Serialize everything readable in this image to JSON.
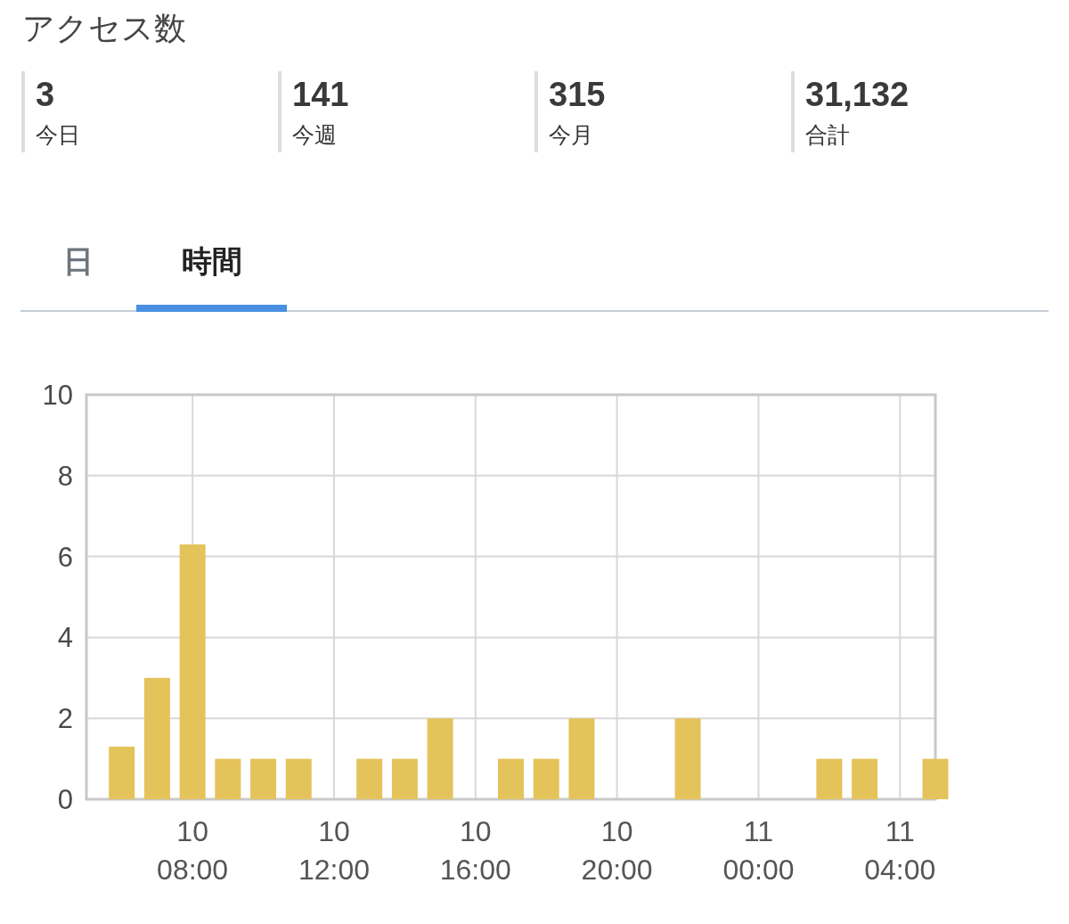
{
  "chart_data": [
    {
      "type": "other",
      "title": "アクセス数",
      "annotations": [
        "3",
        "今日",
        "141",
        "今週",
        "315",
        "今月",
        "31,132",
        "合計"
      ]
    },
    {
      "type": "other",
      "annotations": [
        "日",
        "時間"
      ]
    },
    {
      "type": "bar",
      "categories": [
        null,
        null,
        null,
        "10\n08:00",
        null,
        null,
        null,
        "10\n12:00",
        null,
        null,
        null,
        "10\n16:00",
        null,
        null,
        null,
        "10\n20:00",
        null,
        null,
        null,
        "11\n00:00",
        null,
        null,
        null,
        "11\n04:00",
        null
      ],
      "values": [
        null,
        1.3,
        3,
        6.3,
        1,
        1,
        1,
        null,
        1,
        1,
        2,
        null,
        1,
        1,
        2,
        null,
        null,
        2,
        null,
        null,
        null,
        1,
        1,
        null,
        1
      ],
      "color": "#e4c35a",
      "ylim": [
        0,
        10
      ],
      "yticks": [
        0,
        2,
        4,
        6,
        8,
        10
      ],
      "grid": true
    }
  ]
}
